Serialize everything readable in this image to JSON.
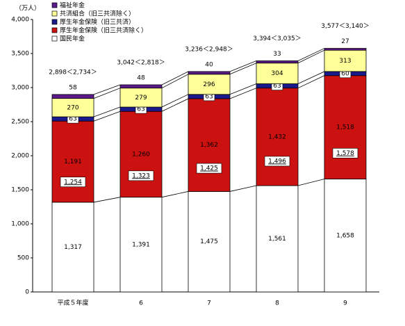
{
  "chart_data": {
    "type": "stacked-bar",
    "y_unit_label": "（万人）",
    "categories": [
      "平成５年度",
      "6",
      "7",
      "8",
      "9"
    ],
    "series": [
      {
        "name": "国民年金",
        "color": "#ffffff",
        "values": [
          1317,
          1391,
          1475,
          1561,
          1658
        ],
        "value_labels": [
          "1,317",
          "1,391",
          "1,475",
          "1,561",
          "1,658"
        ]
      },
      {
        "name": "厚生年金保険（旧三共済除く）",
        "color": "#cc1111",
        "values": [
          1191,
          1260,
          1362,
          1432,
          1518
        ],
        "value_labels": [
          "1,191",
          "1,260",
          "1,362",
          "1,432",
          "1,518"
        ]
      },
      {
        "name": "厚生年金保険（旧三共済）",
        "color": "#1a1a8c",
        "values": [
          63,
          63,
          63,
          63,
          60
        ]
      },
      {
        "name": "共済組合（旧三共済除く）",
        "color": "#ffff99",
        "values": [
          270,
          279,
          296,
          304,
          313
        ]
      },
      {
        "name": "福祉年金",
        "color": "#5a1a8a",
        "values": [
          58,
          48,
          40,
          33,
          27
        ]
      }
    ],
    "subtotals": {
      "values": [
        1254,
        1323,
        1425,
        1496,
        1578
      ],
      "value_labels": [
        "1,254",
        "1,323",
        "1,425",
        "1,496",
        "1,578"
      ]
    },
    "total_labels": [
      "2,898＜2,734＞",
      "3,042＜2,818＞",
      "3,236＜2,948＞",
      "3,394＜3,035＞",
      "3,577＜3,140＞"
    ],
    "ylim": [
      0,
      4000
    ],
    "yticks": [
      0,
      500,
      {
        "value": 1000,
        "label": "1,000"
      },
      {
        "value": 1500,
        "label": "1,500"
      },
      {
        "value": 2000,
        "label": "2,000"
      },
      {
        "value": 2500,
        "label": "2,500"
      },
      {
        "value": 3000,
        "label": "3,000"
      },
      {
        "value": 3500,
        "label": "3,500"
      },
      {
        "value": 4000,
        "label": "4,000"
      }
    ]
  }
}
